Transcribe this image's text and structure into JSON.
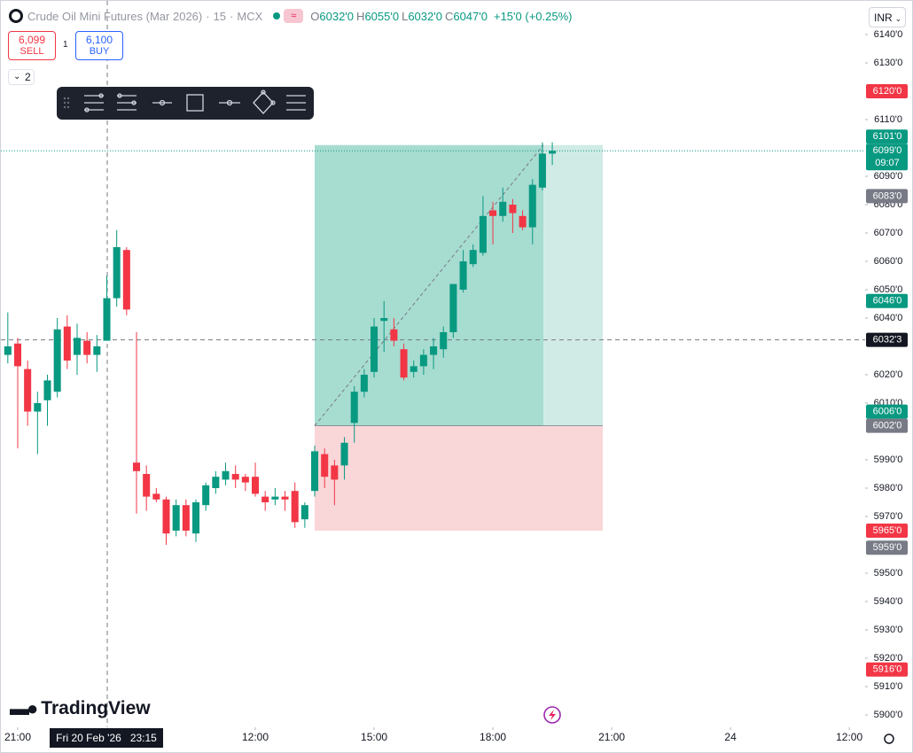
{
  "header": {
    "symbol": "Crude Oil Mini Futures (Mar 2026)",
    "interval": "15",
    "exchange": "MCX",
    "sep": "·",
    "ohlc": [
      {
        "label": "O",
        "value": "6032'0"
      },
      {
        "label": "H",
        "value": "6055'0"
      },
      {
        "label": "L",
        "value": "6032'0"
      },
      {
        "label": "C",
        "value": "6047'0"
      }
    ],
    "change": "+15'0 (+0.25%)"
  },
  "trade": {
    "sell_price": "6,099",
    "sell_label": "SELL",
    "quantity": "1",
    "buy_price": "6,100",
    "buy_label": "BUY",
    "indicators": "2"
  },
  "currency": "INR",
  "brand": "TradingView",
  "crosshair_time": {
    "date": "Fri 20 Feb '26",
    "time": "23:15"
  },
  "chart_data": {
    "type": "candlestick",
    "open": [
      6027,
      6031,
      6022,
      6007,
      6011,
      6014,
      6037,
      6027,
      6032,
      6027,
      6032,
      6047,
      6064,
      5989,
      5985,
      5978,
      5976,
      5965,
      5974,
      5964,
      5974,
      5980,
      5983,
      5985,
      5984,
      5984,
      5977,
      5976,
      5977,
      5979,
      5969,
      5979,
      5992,
      5988,
      5988,
      6003,
      6014,
      6021,
      6039,
      6036,
      6029,
      6021,
      6023,
      6027,
      6029,
      6035,
      6050,
      6059,
      6063,
      6078,
      6076,
      6080,
      6076,
      6072,
      6086,
      6098
    ],
    "high": [
      6042,
      6033,
      6025,
      6014,
      6020,
      6040,
      6041,
      6038,
      6035,
      6034,
      6055,
      6071,
      6065,
      6035,
      5988,
      5980,
      5977,
      5976,
      5976,
      5976,
      5982,
      5986,
      5989,
      5988,
      5985,
      5989,
      5979,
      5980,
      5979,
      5982,
      5975,
      5995,
      5994,
      5990,
      5998,
      6016,
      6022,
      6040,
      6046,
      6040,
      6031,
      6025,
      6029,
      6033,
      6037,
      6052,
      6064,
      6066,
      6083,
      6081,
      6086,
      6082,
      6078,
      6089,
      6102,
      6102
    ],
    "low": [
      6024,
      5994,
      6002,
      5992,
      6002,
      6012,
      6022,
      6020,
      6024,
      6021,
      6032,
      6044,
      6041,
      5971,
      5972,
      5975,
      5960,
      5963,
      5963,
      5961,
      5972,
      5978,
      5981,
      5980,
      5979,
      5977,
      5972,
      5974,
      5972,
      5966,
      5966,
      5977,
      5980,
      5974,
      5983,
      5996,
      6012,
      6019,
      6028,
      6030,
      6018,
      6019,
      6020,
      6022,
      6026,
      6033,
      6049,
      6058,
      6062,
      6066,
      6074,
      6070,
      6071,
      6066,
      6085,
      6094
    ],
    "close": [
      6030,
      6023,
      6007,
      6010,
      6018,
      6036,
      6025,
      6033,
      6027,
      6030,
      6047,
      6065,
      6043,
      5986,
      5977,
      5976,
      5964,
      5974,
      5965,
      5975,
      5981,
      5984,
      5986,
      5983,
      5982,
      5978,
      5975,
      5977,
      5976,
      5968,
      5974,
      5993,
      5984,
      5983,
      5996,
      6014,
      6020,
      6037,
      6040,
      6032,
      6019,
      6023,
      6027,
      6030,
      6035,
      6052,
      6060,
      6064,
      6076,
      6076,
      6081,
      6077,
      6072,
      6087,
      6098,
      6099
    ],
    "up_color": "#089981",
    "down_color": "#f23645",
    "ylim": [
      5900,
      6140
    ],
    "yticks": [
      {
        "value": 6140,
        "label": "6140'0"
      },
      {
        "value": 6130,
        "label": "6130'0"
      },
      {
        "value": 6110,
        "label": "6110'0"
      },
      {
        "value": 6090,
        "label": "6090'0"
      },
      {
        "value": 6080,
        "label": "6080'0"
      },
      {
        "value": 6070,
        "label": "6070'0"
      },
      {
        "value": 6060,
        "label": "6060'0"
      },
      {
        "value": 6050,
        "label": "6050'0"
      },
      {
        "value": 6040,
        "label": "6040'0"
      },
      {
        "value": 6020,
        "label": "6020'0"
      },
      {
        "value": 6010,
        "label": "6010'0"
      },
      {
        "value": 5990,
        "label": "5990'0"
      },
      {
        "value": 5980,
        "label": "5980'0"
      },
      {
        "value": 5970,
        "label": "5970'0"
      },
      {
        "value": 5950,
        "label": "5950'0"
      },
      {
        "value": 5940,
        "label": "5940'0"
      },
      {
        "value": 5930,
        "label": "5930'0"
      },
      {
        "value": 5920,
        "label": "5920'0"
      },
      {
        "value": 5910,
        "label": "5910'0"
      },
      {
        "value": 5900,
        "label": "5900'0"
      }
    ],
    "xlim": [
      -0.7,
      86.6
    ],
    "xticks": [
      {
        "value": 1,
        "label": "21:00"
      },
      {
        "value": 25,
        "label": "12:00"
      },
      {
        "value": 37,
        "label": "15:00"
      },
      {
        "value": 49,
        "label": "18:00"
      },
      {
        "value": 61,
        "label": "21:00"
      },
      {
        "value": 73,
        "label": "24"
      },
      {
        "value": 85,
        "label": "12:00"
      }
    ],
    "price_badges": [
      {
        "value": 6120,
        "label": "6120'0",
        "color": "#f23645"
      },
      {
        "value": 6101,
        "label": "6101'0",
        "color": "#089981"
      },
      {
        "value": 6099,
        "label": "6099'0",
        "sub": "09:07",
        "color": "#089981"
      },
      {
        "value": 6083,
        "label": "6083'0",
        "color": "#787b86"
      },
      {
        "value": 6046,
        "label": "6046'0",
        "color": "#089981"
      },
      {
        "value": 6032.3,
        "label": "6032'3",
        "color": "#131722"
      },
      {
        "value": 6006,
        "label": "6006'0",
        "color": "#089981"
      },
      {
        "value": 6002,
        "label": "6002'0",
        "color": "#787b86"
      },
      {
        "value": 5965,
        "label": "5965'0",
        "color": "#f23645"
      },
      {
        "value": 5959,
        "label": "5959'0",
        "color": "#787b86"
      },
      {
        "value": 5916,
        "label": "5916'0",
        "color": "#f23645"
      }
    ]
  }
}
